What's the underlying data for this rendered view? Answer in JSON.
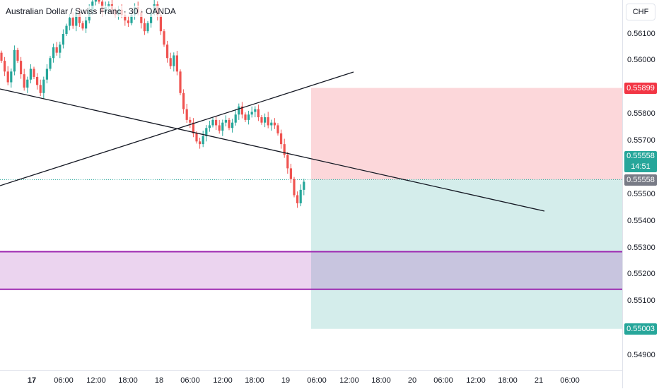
{
  "symbol_title": "Australian Dollar / Swiss Franc · 30 · OANDA",
  "currency": "CHF",
  "price_axis": {
    "labels": [
      "0.56100",
      "0.56000",
      "0.55800",
      "0.55700",
      "0.55500",
      "0.55400",
      "0.55300",
      "0.55200",
      "0.55100",
      "0.54900"
    ],
    "range": [
      0.5484,
      0.5623
    ]
  },
  "tags": {
    "stop_loss": {
      "value": "0.55899",
      "color": "#f23645"
    },
    "last_price": {
      "value": "0.55558",
      "countdown": "14:51",
      "color": "#26a69a"
    },
    "entry": {
      "value": "0.55558",
      "color": "#787b86"
    },
    "take_profit": {
      "value": "0.55003",
      "color": "#26a69a"
    }
  },
  "time_axis": {
    "labels": [
      {
        "text": "17",
        "bold": true
      },
      {
        "text": "06:00",
        "bold": false
      },
      {
        "text": "12:00",
        "bold": false
      },
      {
        "text": "18:00",
        "bold": false
      },
      {
        "text": "18",
        "bold": false
      },
      {
        "text": "06:00",
        "bold": false
      },
      {
        "text": "12:00",
        "bold": false
      },
      {
        "text": "18:00",
        "bold": false
      },
      {
        "text": "19",
        "bold": false
      },
      {
        "text": "06:00",
        "bold": false
      },
      {
        "text": "12:00",
        "bold": false
      },
      {
        "text": "18:00",
        "bold": false
      },
      {
        "text": "20",
        "bold": false
      },
      {
        "text": "06:00",
        "bold": false
      },
      {
        "text": "12:00",
        "bold": false
      },
      {
        "text": "18:00",
        "bold": false
      },
      {
        "text": "21",
        "bold": false
      },
      {
        "text": "06:00",
        "bold": false
      }
    ]
  },
  "chart_data": {
    "type": "candlestick",
    "up_color": "#26a69a",
    "down_color": "#ef5350",
    "candles_close": [
      0.56,
      0.5596,
      0.5592,
      0.5596,
      0.5604,
      0.56,
      0.5595,
      0.559,
      0.5593,
      0.5597,
      0.5594,
      0.5591,
      0.5588,
      0.5593,
      0.5597,
      0.5601,
      0.5605,
      0.5603,
      0.5606,
      0.561,
      0.5613,
      0.5616,
      0.5613,
      0.5618,
      0.5614,
      0.5612,
      0.5615,
      0.5619,
      0.5622,
      0.5625,
      0.5622,
      0.5618,
      0.562,
      0.5621,
      0.5619,
      0.5617,
      0.5619,
      0.5617,
      0.5615,
      0.5614,
      0.5617,
      0.562,
      0.5618,
      0.5614,
      0.5611,
      0.5614,
      0.5618,
      0.5621,
      0.5617,
      0.5611,
      0.5606,
      0.5601,
      0.5598,
      0.5602,
      0.5596,
      0.5588,
      0.5582,
      0.5578,
      0.5577,
      0.5573,
      0.557,
      0.5569,
      0.5572,
      0.5575,
      0.5576,
      0.5578,
      0.5576,
      0.5574,
      0.5577,
      0.5578,
      0.5575,
      0.5577,
      0.558,
      0.5583,
      0.558,
      0.5578,
      0.558,
      0.5581,
      0.5582,
      0.5579,
      0.5577,
      0.5579,
      0.5576,
      0.5577,
      0.5576,
      0.5573,
      0.5569,
      0.5565,
      0.556,
      0.5556,
      0.555,
      0.5547,
      0.5552,
      0.5555
    ],
    "position": {
      "type": "long",
      "entry": 0.55558,
      "stop": 0.55899,
      "target": 0.55003
    },
    "zone": {
      "top": 0.5529,
      "bottom": 0.5515
    },
    "line_current": 0.55558
  }
}
